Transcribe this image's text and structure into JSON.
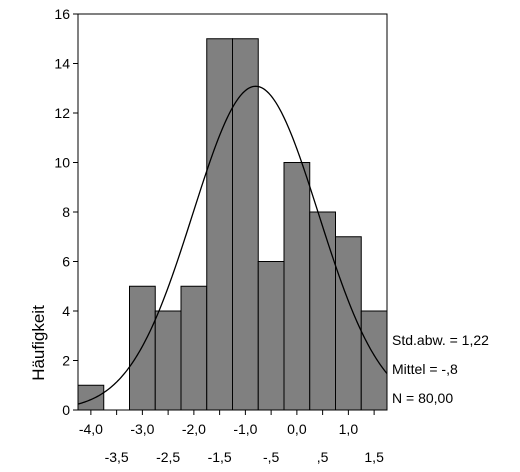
{
  "chart_data": {
    "type": "bar",
    "subtype": "histogram-with-normal-curve",
    "ylabel": "Häufigkeit",
    "xlabel": "",
    "ylim": [
      0,
      16
    ],
    "xlim": [
      -4.25,
      1.75
    ],
    "y_ticks": [
      "0",
      "2",
      "4",
      "6",
      "8",
      "10",
      "12",
      "14",
      "16"
    ],
    "x_ticks_upper": [
      {
        "value": -4.0,
        "label": "-4,0"
      },
      {
        "value": -3.0,
        "label": "-3,0"
      },
      {
        "value": -2.0,
        "label": "-2,0"
      },
      {
        "value": -1.0,
        "label": "-1,0"
      },
      {
        "value": 0.0,
        "label": "0,0"
      },
      {
        "value": 1.0,
        "label": "1,0"
      }
    ],
    "x_ticks_lower": [
      {
        "value": -3.5,
        "label": "-3,5"
      },
      {
        "value": -2.5,
        "label": "-2,5"
      },
      {
        "value": -1.5,
        "label": "-1,5"
      },
      {
        "value": -0.5,
        "label": "-,5"
      },
      {
        "value": 0.5,
        "label": ",5"
      },
      {
        "value": 1.5,
        "label": "1,5"
      }
    ],
    "bin_width": 0.5,
    "bins": [
      {
        "center": -4.0,
        "count": 1
      },
      {
        "center": -3.5,
        "count": 0
      },
      {
        "center": -3.0,
        "count": 5
      },
      {
        "center": -2.5,
        "count": 4
      },
      {
        "center": -2.0,
        "count": 5
      },
      {
        "center": -1.5,
        "count": 15
      },
      {
        "center": -1.0,
        "count": 15
      },
      {
        "center": -0.5,
        "count": 6
      },
      {
        "center": 0.0,
        "count": 10
      },
      {
        "center": 0.5,
        "count": 8
      },
      {
        "center": 1.0,
        "count": 7
      },
      {
        "center": 1.5,
        "count": 4
      }
    ],
    "normal_curve": {
      "mean": -0.8,
      "sd": 1.22,
      "n": 80
    },
    "stats": [
      "Std.abw. = 1,22",
      "Mittel = -,8",
      "N = 80,00"
    ],
    "grid": false,
    "colors": {
      "bar_fill": "#808080",
      "bar_stroke": "#000000",
      "curve": "#000000"
    }
  }
}
